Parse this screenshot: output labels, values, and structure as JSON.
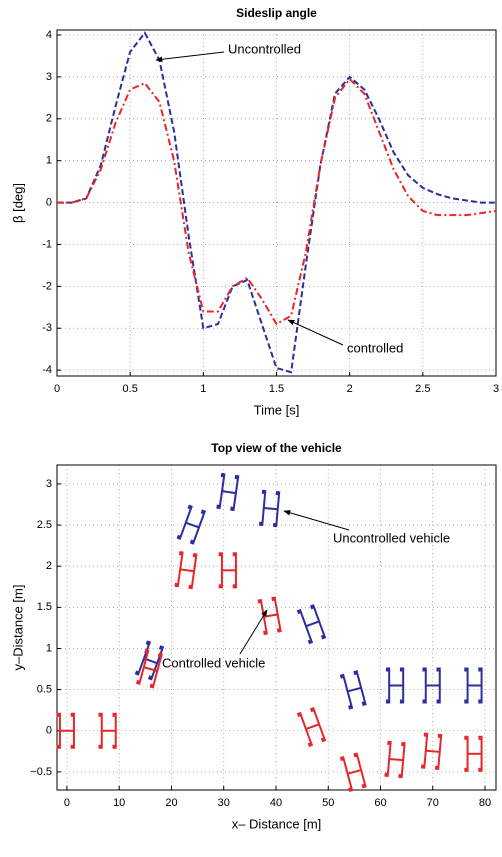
{
  "chart_data": [
    {
      "type": "line",
      "title": "Sideslip angle",
      "x_label": "Time [s]",
      "y_label": "β [deg]",
      "x": [
        0,
        0.1,
        0.2,
        0.3,
        0.4,
        0.5,
        0.6,
        0.7,
        0.8,
        0.9,
        1.0,
        1.1,
        1.2,
        1.3,
        1.4,
        1.5,
        1.6,
        1.7,
        1.8,
        1.9,
        2.0,
        2.1,
        2.2,
        2.3,
        2.4,
        2.5,
        2.6,
        2.7,
        2.8,
        2.9,
        3.0
      ],
      "series": [
        {
          "name": "Uncontrolled",
          "color": "#2b2f9e",
          "dash": "dashed",
          "values": [
            0,
            0,
            0.1,
            0.9,
            2.3,
            3.6,
            4.05,
            3.4,
            1.7,
            -0.8,
            -3.0,
            -2.9,
            -2.0,
            -1.85,
            -2.9,
            -3.95,
            -4.05,
            -1.5,
            0.9,
            2.6,
            3.0,
            2.7,
            2.0,
            1.2,
            0.65,
            0.35,
            0.2,
            0.1,
            0.05,
            0,
            0
          ]
        },
        {
          "name": "controlled",
          "color": "#e8262a",
          "dash": "dashdot",
          "values": [
            0,
            0,
            0.1,
            0.8,
            1.9,
            2.7,
            2.85,
            2.4,
            1.0,
            -1.2,
            -2.6,
            -2.6,
            -2.0,
            -1.8,
            -2.3,
            -2.9,
            -2.7,
            -1.2,
            0.9,
            2.5,
            2.95,
            2.6,
            1.7,
            0.8,
            0.15,
            -0.2,
            -0.3,
            -0.3,
            -0.3,
            -0.25,
            -0.2
          ]
        }
      ],
      "xlim": [
        0,
        3
      ],
      "ylim": [
        -4.14,
        4.12
      ],
      "xticks": [
        0,
        0.5,
        1,
        1.5,
        2,
        2.5,
        3
      ],
      "yticks": [
        -4,
        -3,
        -2,
        -1,
        0,
        1,
        2,
        3,
        4
      ],
      "grid": true
    },
    {
      "type": "vehicles",
      "title": "Top view of the vehicle",
      "x_label": "x– Distance [m]",
      "y_label": "y–Distance [m]",
      "annotations": [
        "Uncontrolled vehicle",
        "Controlled vehicle"
      ],
      "series": [
        {
          "name": "Uncontrolled vehicle",
          "color": "#2b2f9e",
          "x": [
            16,
            24,
            31,
            39,
            47,
            55,
            63,
            70,
            78
          ],
          "values": [
            0.85,
            2.5,
            2.9,
            2.7,
            1.3,
            0.5,
            0.55,
            0.55,
            0.55
          ],
          "heading": [
            20,
            20,
            8,
            5,
            -20,
            -15,
            0,
            0,
            0
          ]
        },
        {
          "name": "Controlled vehicle",
          "color": "#e8262a",
          "x": [
            0,
            8,
            16,
            23,
            31,
            39,
            47,
            55,
            63,
            70,
            78
          ],
          "values": [
            0,
            0,
            0.75,
            1.95,
            1.95,
            1.4,
            0.05,
            -0.5,
            -0.35,
            -0.25,
            -0.28
          ],
          "heading": [
            0,
            0,
            15,
            8,
            0,
            -10,
            -20,
            -15,
            5,
            5,
            0
          ]
        }
      ],
      "xlim": [
        -1.9,
        82.1
      ],
      "ylim": [
        -0.72,
        3.23
      ],
      "xticks": [
        0,
        10,
        20,
        30,
        40,
        50,
        60,
        70,
        80
      ],
      "yticks": [
        {
          "value": -0.5,
          "label": "−0.5"
        },
        0,
        0.5,
        1,
        1.5,
        2,
        2.5,
        3
      ],
      "grid": true
    }
  ]
}
